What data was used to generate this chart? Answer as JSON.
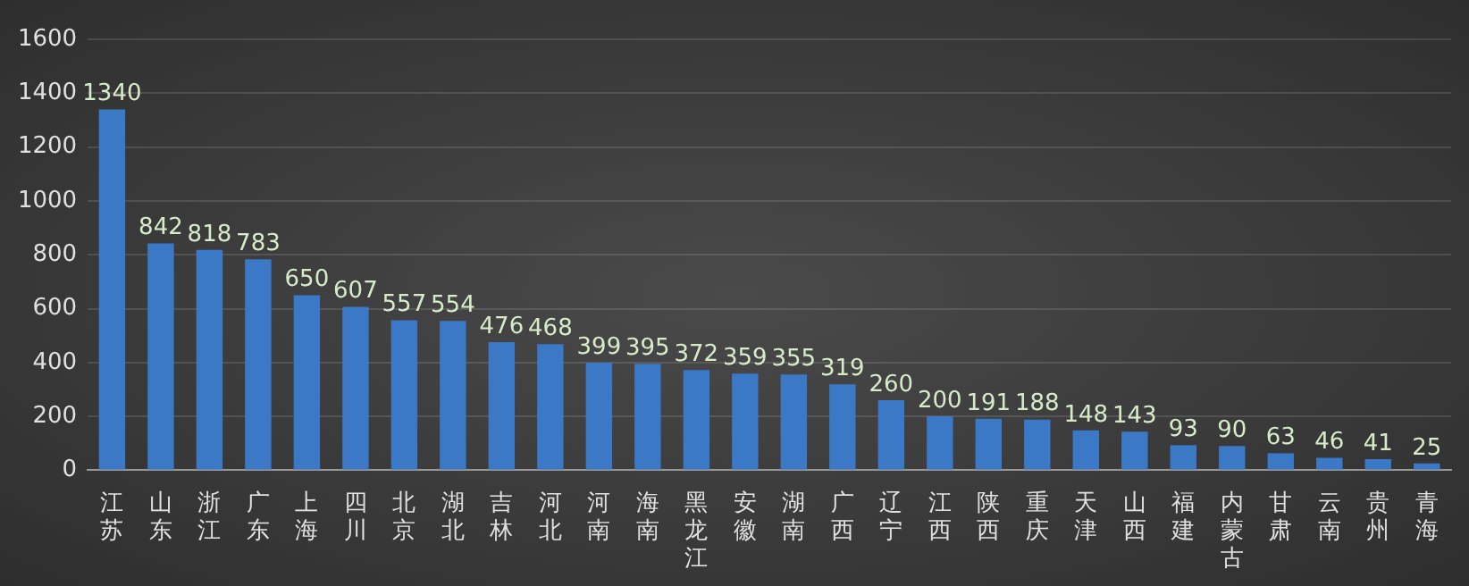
{
  "chart_data": {
    "type": "bar",
    "categories": [
      "江苏",
      "山东",
      "浙江",
      "广东",
      "上海",
      "四川",
      "北京",
      "湖北",
      "吉林",
      "河北",
      "河南",
      "海南",
      "黑龙江",
      "安徽",
      "湖南",
      "广西",
      "辽宁",
      "江西",
      "陕西",
      "重庆",
      "天津",
      "山西",
      "福建",
      "内蒙古",
      "甘肃",
      "云南",
      "贵州",
      "青海"
    ],
    "values": [
      1340,
      842,
      818,
      783,
      650,
      607,
      557,
      554,
      476,
      468,
      399,
      395,
      372,
      359,
      355,
      319,
      260,
      200,
      191,
      188,
      148,
      143,
      93,
      90,
      63,
      46,
      41,
      25
    ],
    "color": "#3b78c6",
    "ylim": [
      0,
      1600
    ],
    "yticks": [
      0,
      200,
      400,
      600,
      800,
      1000,
      1200,
      1400,
      1600
    ],
    "grid": "y",
    "data_labels": true,
    "legend": false
  }
}
